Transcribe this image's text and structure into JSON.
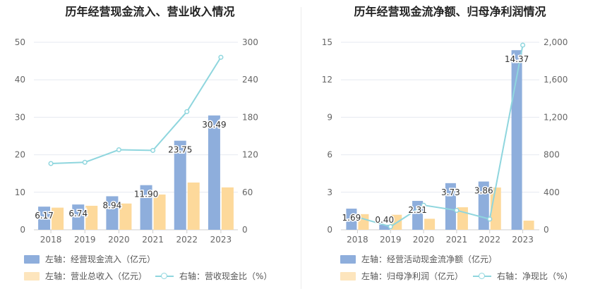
{
  "chart_data": [
    {
      "type": "bar",
      "title": "历年经营现金流入、营业收入情况",
      "categories": [
        "2018",
        "2019",
        "2020",
        "2021",
        "2022",
        "2023"
      ],
      "left_axis": {
        "ylim": [
          0,
          50
        ],
        "ticks": [
          "0",
          "10",
          "20",
          "30",
          "40",
          "50"
        ]
      },
      "right_axis": {
        "ylim": [
          0,
          300
        ],
        "ticks": [
          "0",
          "60",
          "120",
          "180",
          "240",
          "300"
        ]
      },
      "series": [
        {
          "name": "左轴：经营现金流入（亿元）",
          "type": "bar",
          "axis": "left",
          "color": "#8eaedc",
          "values": [
            6.17,
            6.74,
            8.94,
            11.9,
            23.75,
            30.49
          ],
          "labels": [
            "6.17",
            "6.74",
            "8.94",
            "11.90",
            "23.75",
            "30.49"
          ]
        },
        {
          "name": "左轴：营业总收入（亿元）",
          "type": "bar",
          "axis": "left",
          "color": "#fdd99b",
          "values": [
            5.9,
            6.4,
            7.0,
            9.4,
            12.6,
            11.3
          ]
        },
        {
          "name": "右轴：营收现金比（%）",
          "type": "line",
          "axis": "right",
          "color": "#8fd6de",
          "values": [
            106,
            108,
            128,
            127,
            189,
            276
          ]
        }
      ]
    },
    {
      "type": "bar",
      "title": "历年经营现金流净额、归母净利润情况",
      "categories": [
        "2018",
        "2019",
        "2020",
        "2021",
        "2022",
        "2023"
      ],
      "left_axis": {
        "ylim": [
          0,
          15
        ],
        "ticks": [
          "0",
          "3",
          "6",
          "9",
          "12",
          "15"
        ]
      },
      "right_axis": {
        "ylim": [
          0,
          2000
        ],
        "ticks": [
          "0",
          "400",
          "800",
          "1,200",
          "1,600",
          "2,000"
        ]
      },
      "series": [
        {
          "name": "左轴：经营活动现金流净额（亿元）",
          "type": "bar",
          "axis": "left",
          "color": "#8eaedc",
          "values": [
            1.69,
            0.4,
            2.31,
            3.73,
            3.86,
            14.37
          ],
          "labels": [
            "1.69",
            "0.40",
            "2.31",
            "3.73",
            "3.86",
            "14.37"
          ]
        },
        {
          "name": "左轴：归母净利润（亿元）",
          "type": "bar",
          "axis": "left",
          "color": "#fdd99b",
          "values": [
            1.25,
            1.2,
            0.88,
            1.8,
            3.38,
            0.73
          ]
        },
        {
          "name": "右轴：净现比（%）",
          "type": "line",
          "axis": "right",
          "color": "#8fd6de",
          "values": [
            135,
            33,
            262,
            207,
            114,
            1970
          ]
        }
      ]
    }
  ]
}
